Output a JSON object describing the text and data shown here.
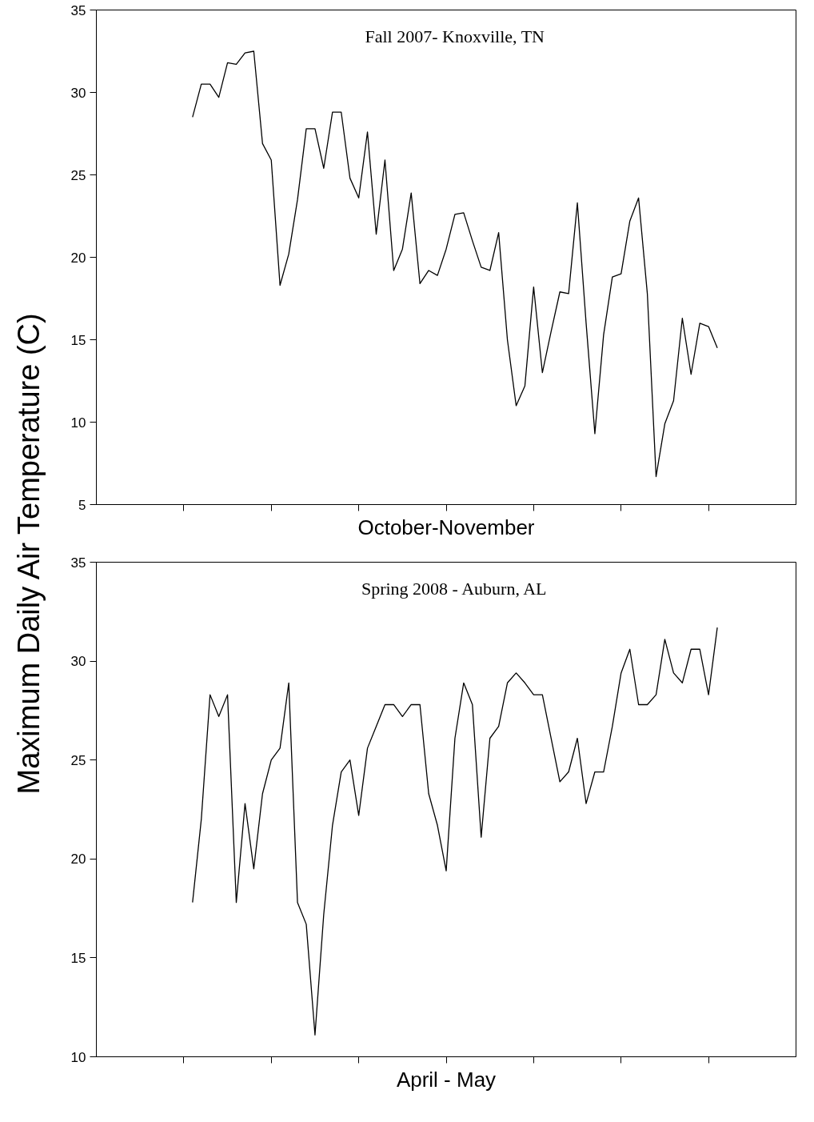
{
  "chart_data": [
    {
      "type": "line",
      "title": "Fall 2007- Knoxville, TN",
      "xlabel": "October-November",
      "ylabel": "Maximum Daily Air Temperature (C)",
      "tick_labels": "y",
      "categories": [
        null,
        null,
        null,
        null,
        null,
        null,
        null,
        null,
        null,
        null,
        null,
        null,
        null,
        null,
        null,
        null,
        null,
        null,
        null,
        null,
        null,
        null,
        null,
        null,
        null,
        null,
        null,
        null,
        null,
        null,
        null,
        null,
        null,
        null,
        null,
        null,
        null,
        null,
        null,
        null,
        null,
        null,
        null,
        null,
        null,
        null,
        null,
        null,
        null,
        null,
        null,
        null,
        null,
        null,
        null,
        null,
        null,
        null,
        null,
        null,
        null
      ],
      "series": [
        {
          "color": "#000000",
          "values": [
            28.5,
            30.5,
            30.5,
            29.7,
            31.8,
            31.7,
            32.4,
            32.5,
            26.9,
            25.9,
            18.3,
            20.2,
            23.5,
            27.8,
            27.8,
            25.4,
            28.8,
            28.8,
            24.8,
            23.6,
            27.6,
            21.4,
            25.9,
            19.2,
            20.5,
            23.9,
            18.4,
            19.2,
            18.9,
            20.5,
            22.6,
            22.7,
            21.0,
            19.4,
            19.2,
            21.5,
            15.0,
            11.0,
            12.2,
            18.2,
            13.0,
            15.5,
            17.9,
            17.8,
            23.3,
            16.0,
            9.3,
            15.3,
            18.8,
            19.0,
            22.2,
            23.6,
            17.8,
            6.7,
            9.9,
            11.3,
            16.3,
            12.9,
            16.0,
            15.8,
            14.5
          ]
        }
      ],
      "ylim": [
        5,
        35
      ],
      "yticks": [
        5,
        10,
        15,
        20,
        25,
        30,
        35
      ]
    },
    {
      "type": "line",
      "title": "Spring 2008 - Auburn, AL",
      "xlabel": "April - May",
      "tick_labels": "y",
      "categories": [
        null,
        null,
        null,
        null,
        null,
        null,
        null,
        null,
        null,
        null,
        null,
        null,
        null,
        null,
        null,
        null,
        null,
        null,
        null,
        null,
        null,
        null,
        null,
        null,
        null,
        null,
        null,
        null,
        null,
        null,
        null,
        null,
        null,
        null,
        null,
        null,
        null,
        null,
        null,
        null,
        null,
        null,
        null,
        null,
        null,
        null,
        null,
        null,
        null,
        null,
        null,
        null,
        null,
        null,
        null,
        null,
        null,
        null,
        null,
        null,
        null
      ],
      "series": [
        {
          "color": "#000000",
          "values": [
            17.8,
            22.0,
            28.3,
            27.2,
            28.3,
            17.8,
            22.8,
            19.5,
            23.3,
            25.0,
            25.6,
            28.9,
            17.8,
            16.7,
            11.1,
            17.2,
            21.7,
            24.4,
            25.0,
            22.2,
            25.6,
            26.7,
            27.8,
            27.8,
            27.2,
            27.8,
            27.8,
            23.3,
            21.7,
            19.4,
            26.1,
            28.9,
            27.8,
            21.1,
            26.1,
            26.7,
            28.9,
            29.4,
            28.9,
            28.3,
            28.3,
            26.1,
            23.9,
            24.4,
            26.1,
            22.8,
            24.4,
            24.4,
            26.7,
            29.4,
            30.6,
            27.8,
            27.8,
            28.3,
            31.1,
            29.4,
            28.9,
            30.6,
            30.6,
            28.3,
            31.7
          ]
        }
      ],
      "ylim": [
        10,
        35
      ],
      "yticks": [
        10,
        15,
        20,
        25,
        30,
        35
      ]
    }
  ]
}
